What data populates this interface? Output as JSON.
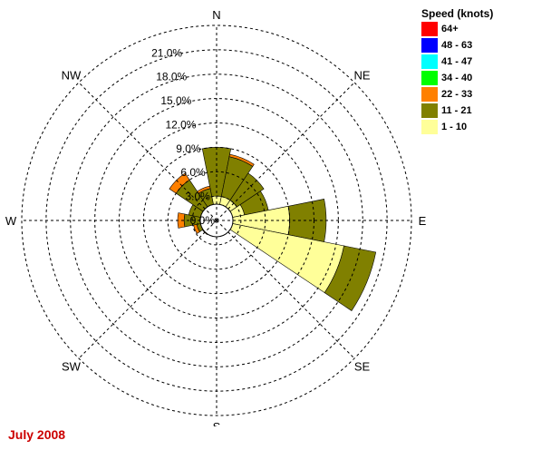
{
  "caption": "July 2008",
  "legend": {
    "title": "Speed (knots)",
    "items": [
      {
        "label": "64+",
        "color": "#ff0000"
      },
      {
        "label": "48 - 63",
        "color": "#0000ff"
      },
      {
        "label": "41 - 47",
        "color": "#00ffff"
      },
      {
        "label": "34 - 40",
        "color": "#00ff00"
      },
      {
        "label": "22 - 33",
        "color": "#ff8000"
      },
      {
        "label": "11 - 21",
        "color": "#808000"
      },
      {
        "label": "1 - 10",
        "color": "#ffff99"
      }
    ]
  },
  "chart_data": {
    "type": "wind-rose",
    "title": "",
    "caption": "July 2008",
    "directions": [
      "N",
      "NNE",
      "NE",
      "ENE",
      "E",
      "ESE",
      "SE",
      "SSE",
      "S",
      "SSW",
      "SW",
      "WSW",
      "W",
      "WNW",
      "NW",
      "NNW"
    ],
    "compass_labels": [
      "N",
      "NE",
      "E",
      "SE",
      "S",
      "SW",
      "W",
      "NW"
    ],
    "ring_labels": [
      "0.0%",
      "3.0%",
      "6.0%",
      "9.0%",
      "12.0%",
      "15.0%",
      "18.0%",
      "21.0%"
    ],
    "ring_values": [
      0,
      3,
      6,
      9,
      12,
      15,
      18,
      21
    ],
    "rmax": 24,
    "legend_placement": "right",
    "series": [
      {
        "name": "1 - 10",
        "color": "#ffff99",
        "values": [
          3.0,
          3.0,
          3.0,
          3.5,
          9.0,
          16.0,
          0.8,
          0.8,
          0.5,
          0.5,
          0.8,
          1.0,
          1.5,
          1.5,
          2.0,
          2.0
        ]
      },
      {
        "name": "11 - 21",
        "color": "#808000",
        "values": [
          6.0,
          5.0,
          4.0,
          3.0,
          4.5,
          4.0,
          0.5,
          1.0,
          1.5,
          1.0,
          0.8,
          1.5,
          2.5,
          2.0,
          4.0,
          2.0
        ]
      },
      {
        "name": "22 - 33",
        "color": "#ff8000",
        "values": [
          0,
          0.3,
          0,
          0,
          0,
          0,
          0,
          0,
          0,
          0,
          0.5,
          0.4,
          0.8,
          0,
          1.0,
          0.3
        ]
      },
      {
        "name": "34 - 40",
        "color": "#00ff00",
        "values": [
          0,
          0,
          0,
          0,
          0,
          0,
          0,
          0,
          0,
          0,
          0,
          0,
          0,
          0,
          0,
          0
        ]
      },
      {
        "name": "41 - 47",
        "color": "#00ffff",
        "values": [
          0,
          0,
          0,
          0,
          0,
          0,
          0,
          0,
          0,
          0,
          0,
          0,
          0,
          0,
          0,
          0
        ]
      },
      {
        "name": "48 - 63",
        "color": "#0000ff",
        "values": [
          0,
          0,
          0,
          0,
          0,
          0,
          0,
          0,
          0,
          0,
          0,
          0,
          0,
          0,
          0,
          0
        ]
      },
      {
        "name": "64+",
        "color": "#ff0000",
        "values": [
          0,
          0,
          0,
          0,
          0,
          0,
          0,
          0,
          0,
          0,
          0,
          0,
          0,
          0,
          0,
          0
        ]
      }
    ]
  }
}
